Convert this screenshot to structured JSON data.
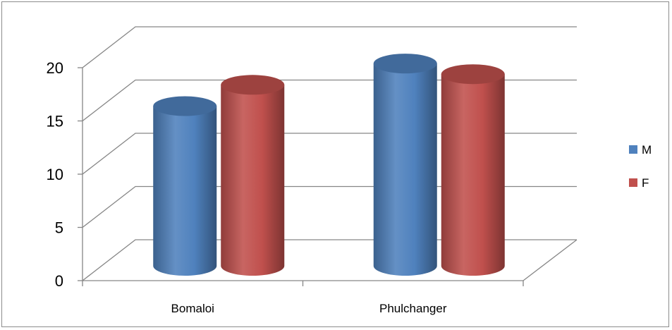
{
  "chart_data": {
    "type": "bar",
    "style": "3d-cylinder",
    "categories": [
      "Bomaloi",
      "Phulchanger"
    ],
    "series": [
      {
        "name": "M",
        "values": [
          15,
          19
        ],
        "color": "#4f81bd"
      },
      {
        "name": "F",
        "values": [
          17,
          18
        ],
        "color": "#c0504d"
      }
    ],
    "ylim": [
      0,
      20
    ],
    "yticks": [
      "0",
      "5",
      "10",
      "15",
      "20"
    ],
    "grid": true,
    "legend_position": "right"
  }
}
